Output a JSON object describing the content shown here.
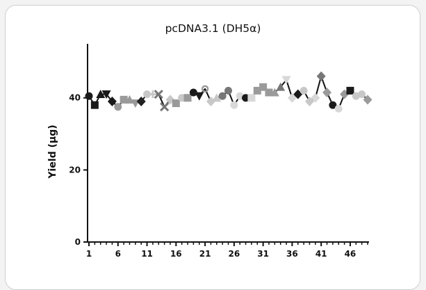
{
  "chart_data": {
    "type": "scatter",
    "title": "pcDNA3.1 (DH5α)",
    "xlabel": "",
    "ylabel": "Yield (μg)",
    "xlim": [
      1,
      49
    ],
    "ylim": [
      0,
      55
    ],
    "x_ticks": [
      "1",
      "6",
      "11",
      "16",
      "21",
      "26",
      "31",
      "36",
      "41",
      "46"
    ],
    "y_ticks": [
      "0",
      "20",
      "40"
    ],
    "grid": false,
    "legend": "none",
    "series": [
      {
        "x": [
          1,
          2,
          3,
          4,
          5,
          6,
          7,
          8,
          9,
          10,
          11,
          12,
          13,
          14,
          15,
          16,
          17,
          18,
          19,
          20,
          21,
          22,
          23,
          24,
          25,
          26,
          27,
          28,
          29,
          30,
          31,
          32,
          33,
          34,
          35,
          36,
          37,
          38,
          39,
          40,
          41,
          42,
          43,
          44,
          45,
          46,
          47,
          48,
          49
        ],
        "values": [
          40.5,
          38.0,
          41.0,
          41.0,
          39.0,
          37.5,
          39.5,
          39.5,
          38.5,
          39.0,
          41.0,
          41.0,
          41.0,
          37.5,
          39.5,
          38.5,
          40.0,
          40.0,
          41.5,
          40.5,
          42.5,
          39.0,
          40.0,
          40.5,
          42.0,
          38.0,
          40.5,
          40.0,
          40.0,
          42.0,
          43.0,
          41.5,
          41.5,
          43.0,
          45.0,
          40.0,
          41.0,
          42.0,
          39.0,
          40.0,
          46.0,
          41.5,
          38.0,
          37.0,
          41.0,
          42.0,
          40.5,
          41.0,
          39.5
        ],
        "markers": [
          "circle",
          "square",
          "triangle",
          "triangle-down",
          "diamond",
          "circle",
          "square",
          "triangle",
          "triangle-down",
          "diamond",
          "circle",
          "plus",
          "cross",
          "cross",
          "diamond",
          "square",
          "circle",
          "square",
          "circle",
          "triangle-down",
          "ring",
          "diamond",
          "triangle",
          "circle",
          "circle",
          "circle",
          "circle",
          "circle",
          "square",
          "square",
          "square",
          "square",
          "triangle",
          "triangle",
          "triangle-down",
          "diamond",
          "diamond",
          "circle",
          "diamond",
          "diamond",
          "diamond",
          "diamond",
          "circle",
          "circle",
          "diamond",
          "square",
          "circle",
          "circle",
          "diamond"
        ],
        "marker_colors": [
          "#1a1a1a",
          "#1a1a1a",
          "#1a1a1a",
          "#1a1a1a",
          "#1a1a1a",
          "#9a9a9a",
          "#9a9a9a",
          "#9a9a9a",
          "#9a9a9a",
          "#222222",
          "#c8c8c8",
          "#c8c8c8",
          "#777777",
          "#777777",
          "#c8c8c8",
          "#9a9a9a",
          "#c8c8c8",
          "#9a9a9a",
          "#1a1a1a",
          "#1a1a1a",
          "#9a9a9a",
          "#c8c8c8",
          "#c8c8c8",
          "#777777",
          "#777777",
          "#d8d8d8",
          "#d8d8d8",
          "#1a1a1a",
          "#d8d8d8",
          "#9a9a9a",
          "#9a9a9a",
          "#9a9a9a",
          "#9a9a9a",
          "#777777",
          "#d8d8d8",
          "#d8d8d8",
          "#1a1a1a",
          "#c8c8c8",
          "#c8c8c8",
          "#d8d8d8",
          "#777777",
          "#9a9a9a",
          "#1a1a1a",
          "#d8d8d8",
          "#9a9a9a",
          "#1a1a1a",
          "#c8c8c8",
          "#c8c8c8",
          "#9a9a9a"
        ]
      }
    ]
  }
}
